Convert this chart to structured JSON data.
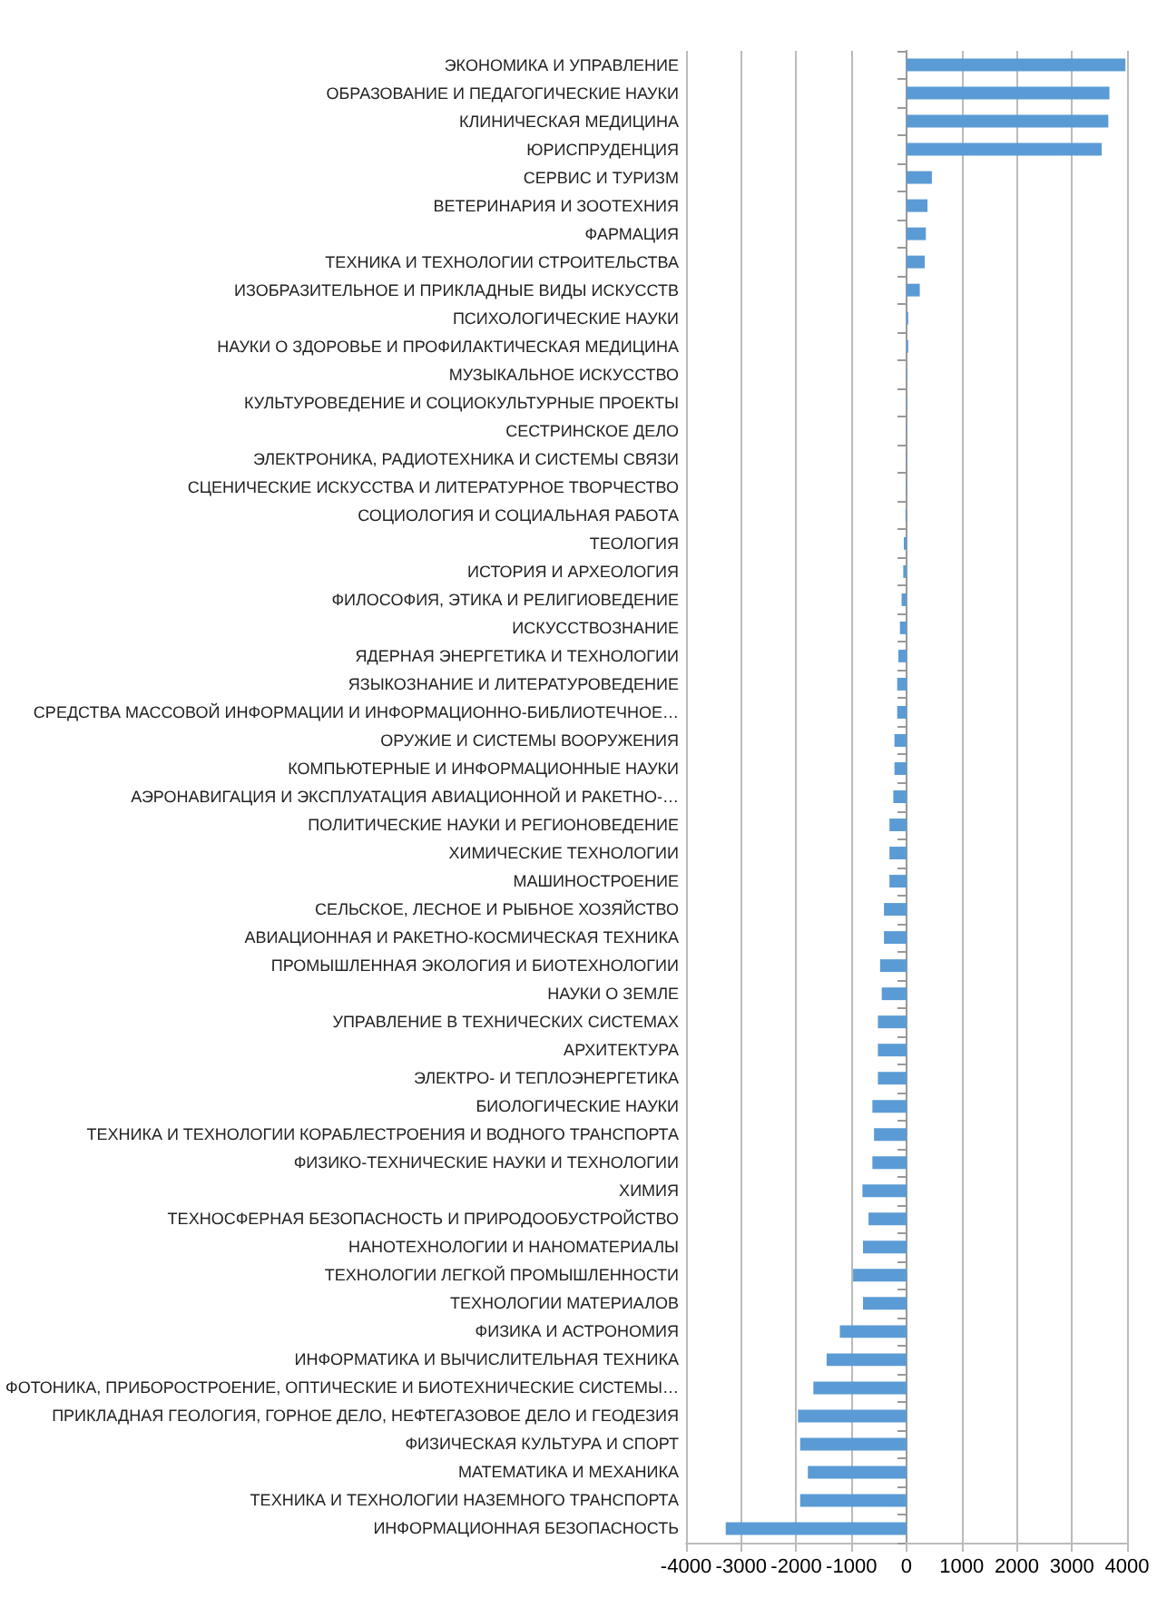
{
  "chart_data": {
    "type": "bar",
    "orientation": "horizontal",
    "categories": [
      "ЭКОНОМИКА И УПРАВЛЕНИЕ",
      "ОБРАЗОВАНИЕ И ПЕДАГОГИЧЕСКИЕ НАУКИ",
      "КЛИНИЧЕСКАЯ МЕДИЦИНА",
      "ЮРИСПРУДЕНЦИЯ",
      "СЕРВИС И ТУРИЗМ",
      "ВЕТЕРИНАРИЯ И ЗООТЕХНИЯ",
      "ФАРМАЦИЯ",
      "ТЕХНИКА И ТЕХНОЛОГИИ СТРОИТЕЛЬСТВА",
      "ИЗОБРАЗИТЕЛЬНОЕ И ПРИКЛАДНЫЕ ВИДЫ ИСКУССТВ",
      "ПСИХОЛОГИЧЕСКИЕ НАУКИ",
      "НАУКИ О ЗДОРОВЬЕ И ПРОФИЛАКТИЧЕСКАЯ МЕДИЦИНА",
      "МУЗЫКАЛЬНОЕ ИСКУССТВО",
      "КУЛЬТУРОВЕДЕНИЕ И СОЦИОКУЛЬТУРНЫЕ ПРОЕКТЫ",
      "СЕСТРИНСКОЕ ДЕЛО",
      "ЭЛЕКТРОНИКА, РАДИОТЕХНИКА И СИСТЕМЫ СВЯЗИ",
      "СЦЕНИЧЕСКИЕ ИСКУССТВА И ЛИТЕРАТУРНОЕ ТВОРЧЕСТВО",
      "СОЦИОЛОГИЯ И СОЦИАЛЬНАЯ РАБОТА",
      "ТЕОЛОГИЯ",
      "ИСТОРИЯ И АРХЕОЛОГИЯ",
      "ФИЛОСОФИЯ, ЭТИКА И РЕЛИГИОВЕДЕНИЕ",
      "ИСКУССТВОЗНАНИЕ",
      "ЯДЕРНАЯ ЭНЕРГЕТИКА И ТЕХНОЛОГИИ",
      "ЯЗЫКОЗНАНИЕ И ЛИТЕРАТУРОВЕДЕНИЕ",
      "СРЕДСТВА МАССОВОЙ ИНФОРМАЦИИ И ИНФОРМАЦИОННО-БИБЛИОТЕЧНОЕ…",
      "ОРУЖИЕ И СИСТЕМЫ ВООРУЖЕНИЯ",
      "КОМПЬЮТЕРНЫЕ И ИНФОРМАЦИОННЫЕ НАУКИ",
      "АЭРОНАВИГАЦИЯ И ЭКСПЛУАТАЦИЯ АВИАЦИОННОЙ И РАКЕТНО-…",
      "ПОЛИТИЧЕСКИЕ НАУКИ И РЕГИОНОВЕДЕНИЕ",
      "ХИМИЧЕСКИЕ ТЕХНОЛОГИИ",
      "МАШИНОСТРОЕНИЕ",
      "СЕЛЬСКОЕ, ЛЕСНОЕ И РЫБНОЕ ХОЗЯЙСТВО",
      "АВИАЦИОННАЯ И РАКЕТНО-КОСМИЧЕСКАЯ ТЕХНИКА",
      "ПРОМЫШЛЕННАЯ ЭКОЛОГИЯ И БИОТЕХНОЛОГИИ",
      "НАУКИ О ЗЕМЛЕ",
      "УПРАВЛЕНИЕ В ТЕХНИЧЕСКИХ СИСТЕМАХ",
      "АРХИТЕКТУРА",
      "ЭЛЕКТРО- И ТЕПЛОЭНЕРГЕТИКА",
      "БИОЛОГИЧЕСКИЕ НАУКИ",
      "ТЕХНИКА И ТЕХНОЛОГИИ КОРАБЛЕСТРОЕНИЯ И ВОДНОГО ТРАНСПОРТА",
      "ФИЗИКО-ТЕХНИЧЕСКИЕ НАУКИ И ТЕХНОЛОГИИ",
      "ХИМИЯ",
      "ТЕХНОСФЕРНАЯ БЕЗОПАСНОСТЬ И ПРИРОДООБУСТРОЙСТВО",
      "НАНОТЕХНОЛОГИИ И НАНОМАТЕРИАЛЫ",
      "ТЕХНОЛОГИИ ЛЕГКОЙ ПРОМЫШЛЕННОСТИ",
      "ТЕХНОЛОГИИ МАТЕРИАЛОВ",
      "ФИЗИКА И АСТРОНОМИЯ",
      "ИНФОРМАТИКА И ВЫЧИСЛИТЕЛЬНАЯ ТЕХНИКА",
      "ФОТОНИКА, ПРИБОРОСТРОЕНИЕ, ОПТИЧЕСКИЕ И БИОТЕХНИЧЕСКИЕ СИСТЕМЫ…",
      "ПРИКЛАДНАЯ ГЕОЛОГИЯ, ГОРНОЕ ДЕЛО, НЕФТЕГАЗОВОЕ ДЕЛО И ГЕОДЕЗИЯ",
      "ФИЗИЧЕСКАЯ КУЛЬТУРА И СПОРТ",
      "МАТЕМАТИКА И МЕХАНИКА",
      "ТЕХНИКА И ТЕХНОЛОГИИ НАЗЕМНОГО ТРАНСПОРТА",
      "ИНФОРМАЦИОННАЯ БЕЗОПАСНОСТЬ"
    ],
    "values": [
      3970,
      3680,
      3660,
      3540,
      460,
      380,
      350,
      330,
      240,
      30,
      30,
      10,
      10,
      -10,
      -10,
      -10,
      -20,
      -50,
      -60,
      -90,
      -120,
      -150,
      -170,
      -170,
      -220,
      -220,
      -240,
      -310,
      -310,
      -310,
      -410,
      -410,
      -480,
      -450,
      -520,
      -520,
      -520,
      -620,
      -590,
      -620,
      -800,
      -690,
      -790,
      -970,
      -790,
      -1210,
      -1450,
      -1690,
      -1970,
      -1930,
      -1790,
      -1930,
      -3280
    ],
    "color": "#5b9bd5",
    "xlim": [
      -4000,
      4000
    ],
    "xticks": [
      -4000,
      -3000,
      -2000,
      -1000,
      0,
      1000,
      2000,
      3000,
      4000
    ],
    "grid": "x"
  }
}
